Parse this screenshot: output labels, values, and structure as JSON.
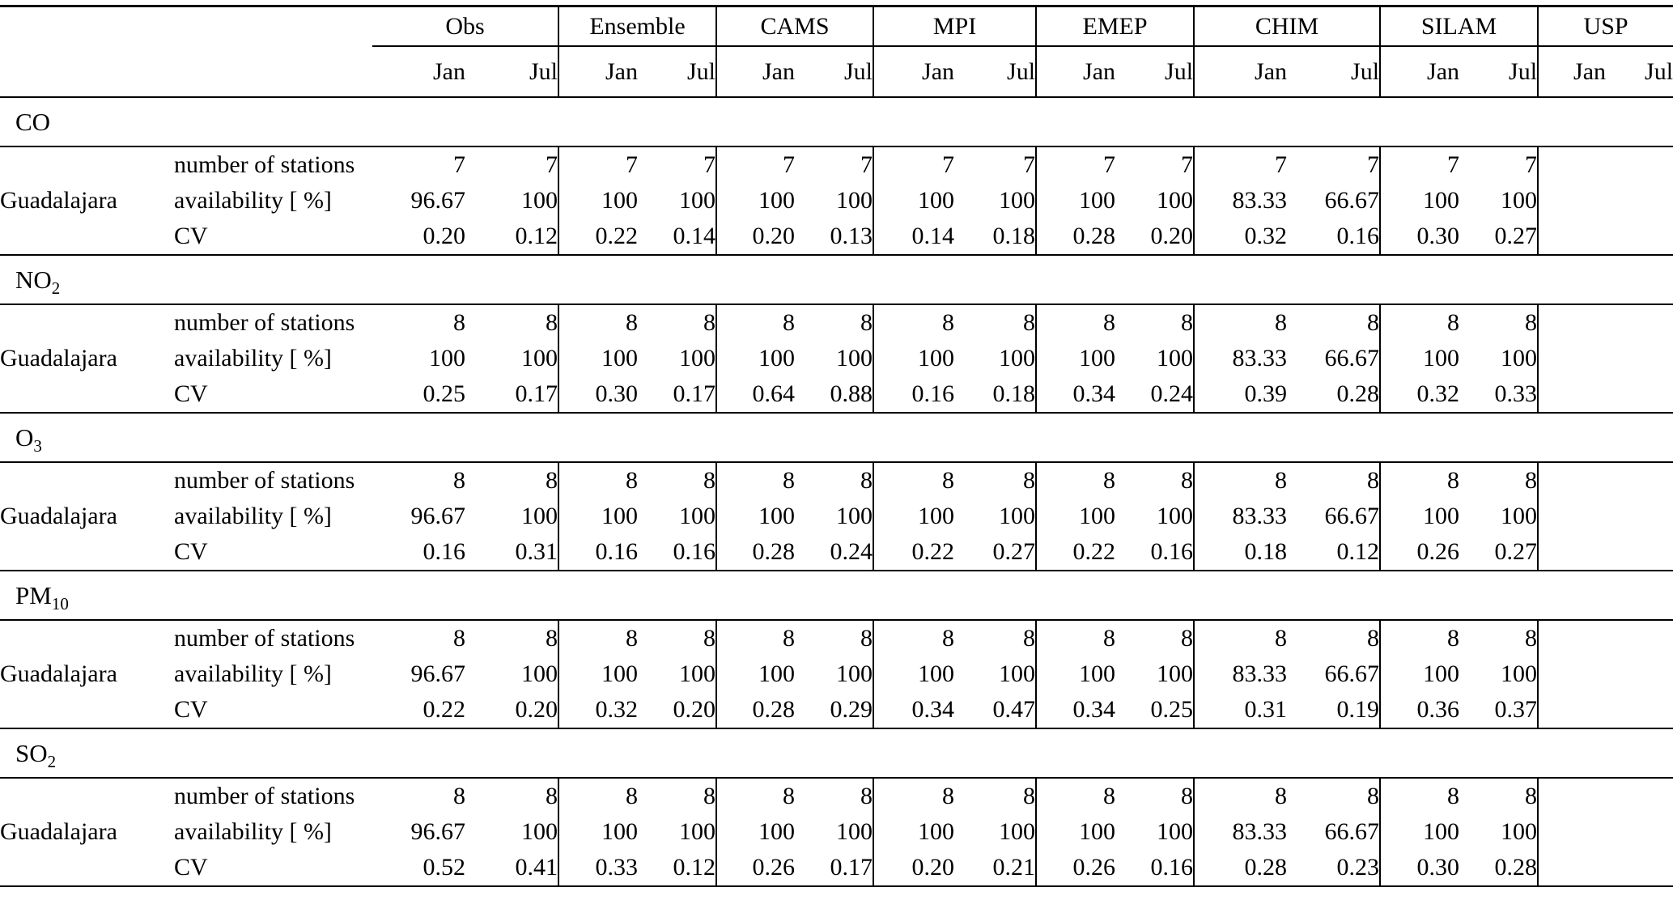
{
  "table": {
    "months": [
      "Jan",
      "Jul"
    ],
    "groups": [
      {
        "label": "Obs"
      },
      {
        "label": "Ensemble"
      },
      {
        "label": "CAMS"
      },
      {
        "label": "MPI"
      },
      {
        "label": "EMEP"
      },
      {
        "label": "CHIM"
      },
      {
        "label": "SILAM"
      },
      {
        "label": "USP"
      }
    ],
    "row_labels": {
      "city": "Guadalajara",
      "metrics": [
        "number of stations",
        "availability [ %]",
        "CV"
      ]
    },
    "sections": [
      {
        "pollutant": {
          "base": "CO",
          "sub": ""
        },
        "values": [
          [
            "7",
            "7",
            "7",
            "7",
            "7",
            "7",
            "7",
            "7",
            "7",
            "7",
            "7",
            "7",
            "7",
            "7",
            "",
            ""
          ],
          [
            "96.67",
            "100",
            "100",
            "100",
            "100",
            "100",
            "100",
            "100",
            "100",
            "100",
            "83.33",
            "66.67",
            "100",
            "100",
            "",
            ""
          ],
          [
            "0.20",
            "0.12",
            "0.22",
            "0.14",
            "0.20",
            "0.13",
            "0.14",
            "0.18",
            "0.28",
            "0.20",
            "0.32",
            "0.16",
            "0.30",
            "0.27",
            "",
            ""
          ]
        ]
      },
      {
        "pollutant": {
          "base": "NO",
          "sub": "2"
        },
        "values": [
          [
            "8",
            "8",
            "8",
            "8",
            "8",
            "8",
            "8",
            "8",
            "8",
            "8",
            "8",
            "8",
            "8",
            "8",
            "",
            ""
          ],
          [
            "100",
            "100",
            "100",
            "100",
            "100",
            "100",
            "100",
            "100",
            "100",
            "100",
            "83.33",
            "66.67",
            "100",
            "100",
            "",
            ""
          ],
          [
            "0.25",
            "0.17",
            "0.30",
            "0.17",
            "0.64",
            "0.88",
            "0.16",
            "0.18",
            "0.34",
            "0.24",
            "0.39",
            "0.28",
            "0.32",
            "0.33",
            "",
            ""
          ]
        ]
      },
      {
        "pollutant": {
          "base": "O",
          "sub": "3"
        },
        "values": [
          [
            "8",
            "8",
            "8",
            "8",
            "8",
            "8",
            "8",
            "8",
            "8",
            "8",
            "8",
            "8",
            "8",
            "8",
            "",
            ""
          ],
          [
            "96.67",
            "100",
            "100",
            "100",
            "100",
            "100",
            "100",
            "100",
            "100",
            "100",
            "83.33",
            "66.67",
            "100",
            "100",
            "",
            ""
          ],
          [
            "0.16",
            "0.31",
            "0.16",
            "0.16",
            "0.28",
            "0.24",
            "0.22",
            "0.27",
            "0.22",
            "0.16",
            "0.18",
            "0.12",
            "0.26",
            "0.27",
            "",
            ""
          ]
        ]
      },
      {
        "pollutant": {
          "base": "PM",
          "sub": "10"
        },
        "values": [
          [
            "8",
            "8",
            "8",
            "8",
            "8",
            "8",
            "8",
            "8",
            "8",
            "8",
            "8",
            "8",
            "8",
            "8",
            "",
            ""
          ],
          [
            "96.67",
            "100",
            "100",
            "100",
            "100",
            "100",
            "100",
            "100",
            "100",
            "100",
            "83.33",
            "66.67",
            "100",
            "100",
            "",
            ""
          ],
          [
            "0.22",
            "0.20",
            "0.32",
            "0.20",
            "0.28",
            "0.29",
            "0.34",
            "0.47",
            "0.34",
            "0.25",
            "0.31",
            "0.19",
            "0.36",
            "0.37",
            "",
            ""
          ]
        ]
      },
      {
        "pollutant": {
          "base": "SO",
          "sub": "2"
        },
        "values": [
          [
            "8",
            "8",
            "8",
            "8",
            "8",
            "8",
            "8",
            "8",
            "8",
            "8",
            "8",
            "8",
            "8",
            "8",
            "",
            ""
          ],
          [
            "96.67",
            "100",
            "100",
            "100",
            "100",
            "100",
            "100",
            "100",
            "100",
            "100",
            "83.33",
            "66.67",
            "100",
            "100",
            "",
            ""
          ],
          [
            "0.52",
            "0.41",
            "0.33",
            "0.12",
            "0.26",
            "0.17",
            "0.20",
            "0.21",
            "0.26",
            "0.16",
            "0.28",
            "0.23",
            "0.30",
            "0.28",
            "",
            ""
          ]
        ]
      }
    ]
  }
}
